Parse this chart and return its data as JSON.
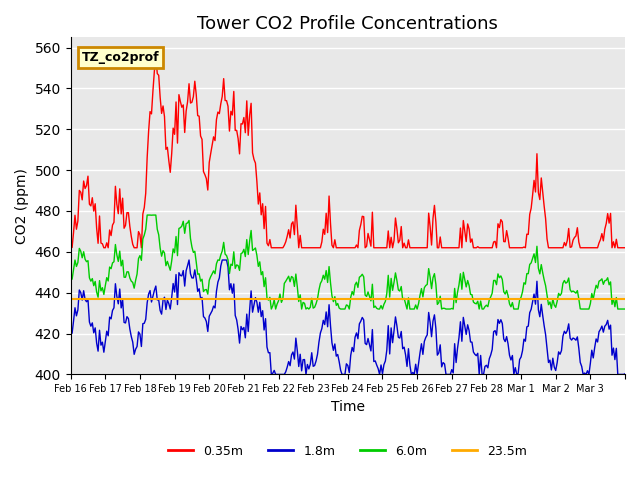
{
  "title": "Tower CO2 Profile Concentrations",
  "xlabel": "Time",
  "ylabel": "CO2 (ppm)",
  "ylim": [
    400,
    565
  ],
  "background_color": "#e8e8e8",
  "figure_background": "#ffffff",
  "grid_color": "#ffffff",
  "series": {
    "0.35m": {
      "color": "#ff0000",
      "linewidth": 1.0
    },
    "1.8m": {
      "color": "#0000cc",
      "linewidth": 1.0
    },
    "6.0m": {
      "color": "#00cc00",
      "linewidth": 1.0
    },
    "23.5m": {
      "color": "#ffaa00",
      "linewidth": 1.5
    }
  },
  "legend_label": "TZ_co2prof",
  "legend_bg": "#ffffcc",
  "legend_edge": "#cc8800",
  "flat_value_23_5m": 437,
  "yticks": [
    400,
    420,
    440,
    460,
    480,
    500,
    520,
    540,
    560
  ],
  "xtick_labels": [
    "Feb 16",
    "Feb 17",
    "Feb 18",
    "Feb 19",
    "Feb 20",
    "Feb 21",
    "Feb 22",
    "Feb 23",
    "Feb 24",
    "Feb 25",
    "Feb 26",
    "Feb 27",
    "Feb 28",
    "Mar 1",
    "Mar 2",
    "Mar 3"
  ],
  "title_fontsize": 13
}
